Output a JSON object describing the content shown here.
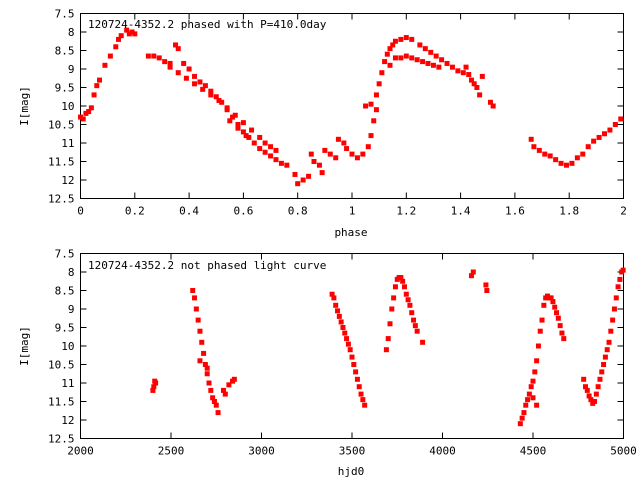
{
  "colors": {
    "series": "#ff0000",
    "frame": "#000000",
    "background": "#ffffff"
  },
  "chart_data": [
    {
      "type": "scatter",
      "title": "120724-4352.2 phased with P=410.0day",
      "xlabel": "phase",
      "ylabel": "I[mag]",
      "xlim": [
        0,
        2
      ],
      "ylim": [
        12.5,
        7.5
      ],
      "y_inverted": true,
      "grid": false,
      "xticks": [
        "0",
        "0.2",
        "0.4",
        "0.6",
        "0.8",
        "1",
        "1.2",
        "1.4",
        "1.6",
        "1.8",
        "2"
      ],
      "xtick_values": [
        0,
        0.2,
        0.4,
        0.6,
        0.8,
        1.0,
        1.2,
        1.4,
        1.6,
        1.8,
        2.0
      ],
      "yticks": [
        "7.5",
        "8",
        "8.5",
        "9",
        "9.5",
        "10",
        "10.5",
        "11",
        "11.5",
        "12",
        "12.5"
      ],
      "ytick_values": [
        7.5,
        8,
        8.5,
        9,
        9.5,
        10,
        10.5,
        11,
        11.5,
        12,
        12.5
      ],
      "series": [
        {
          "color": "#ff0000",
          "points": [
            [
              0.0,
              10.3
            ],
            [
              0.01,
              10.35
            ],
            [
              0.02,
              10.2
            ],
            [
              0.03,
              10.15
            ],
            [
              0.04,
              10.05
            ],
            [
              0.05,
              9.7
            ],
            [
              0.06,
              9.45
            ],
            [
              0.07,
              9.3
            ],
            [
              0.09,
              8.9
            ],
            [
              0.11,
              8.65
            ],
            [
              0.13,
              8.4
            ],
            [
              0.14,
              8.2
            ],
            [
              0.15,
              8.1
            ],
            [
              0.17,
              7.95
            ],
            [
              0.18,
              8.05
            ],
            [
              0.19,
              8.0
            ],
            [
              0.2,
              8.05
            ],
            [
              0.25,
              8.65
            ],
            [
              0.27,
              8.65
            ],
            [
              0.29,
              8.7
            ],
            [
              0.31,
              8.8
            ],
            [
              0.33,
              8.85
            ],
            [
              0.35,
              8.35
            ],
            [
              0.36,
              8.45
            ],
            [
              0.38,
              8.85
            ],
            [
              0.4,
              9.0
            ],
            [
              0.42,
              9.2
            ],
            [
              0.44,
              9.35
            ],
            [
              0.46,
              9.45
            ],
            [
              0.48,
              9.6
            ],
            [
              0.5,
              9.75
            ],
            [
              0.52,
              9.9
            ],
            [
              0.54,
              10.1
            ],
            [
              0.56,
              10.3
            ],
            [
              0.58,
              10.5
            ],
            [
              0.6,
              10.7
            ],
            [
              0.62,
              10.85
            ],
            [
              0.64,
              11.0
            ],
            [
              0.66,
              11.15
            ],
            [
              0.68,
              11.25
            ],
            [
              0.7,
              11.35
            ],
            [
              0.72,
              11.45
            ],
            [
              0.74,
              11.55
            ],
            [
              0.76,
              11.6
            ],
            [
              0.33,
              8.95
            ],
            [
              0.36,
              9.1
            ],
            [
              0.39,
              9.25
            ],
            [
              0.42,
              9.4
            ],
            [
              0.45,
              9.55
            ],
            [
              0.48,
              9.7
            ],
            [
              0.51,
              9.85
            ],
            [
              0.54,
              10.05
            ],
            [
              0.57,
              10.25
            ],
            [
              0.6,
              10.45
            ],
            [
              0.63,
              10.65
            ],
            [
              0.66,
              10.85
            ],
            [
              0.68,
              11.0
            ],
            [
              0.7,
              11.1
            ],
            [
              0.72,
              11.2
            ],
            [
              0.55,
              10.4
            ],
            [
              0.58,
              10.6
            ],
            [
              0.61,
              10.8
            ],
            [
              0.79,
              11.85
            ],
            [
              0.8,
              12.1
            ],
            [
              0.82,
              12.0
            ],
            [
              0.84,
              11.9
            ],
            [
              0.85,
              11.3
            ],
            [
              0.86,
              11.5
            ],
            [
              0.88,
              11.6
            ],
            [
              0.89,
              11.8
            ],
            [
              0.9,
              11.2
            ],
            [
              0.92,
              11.3
            ],
            [
              0.94,
              11.4
            ],
            [
              0.95,
              10.9
            ],
            [
              0.97,
              11.0
            ],
            [
              0.98,
              11.15
            ],
            [
              1.0,
              11.3
            ],
            [
              1.02,
              11.4
            ],
            [
              1.04,
              11.3
            ],
            [
              1.06,
              11.1
            ],
            [
              1.07,
              10.8
            ],
            [
              1.08,
              10.4
            ],
            [
              1.09,
              10.1
            ],
            [
              1.05,
              10.0
            ],
            [
              1.07,
              9.95
            ],
            [
              1.09,
              9.7
            ],
            [
              1.1,
              9.4
            ],
            [
              1.11,
              9.1
            ],
            [
              1.12,
              8.8
            ],
            [
              1.13,
              8.6
            ],
            [
              1.14,
              8.45
            ],
            [
              1.15,
              8.35
            ],
            [
              1.16,
              8.25
            ],
            [
              1.18,
              8.2
            ],
            [
              1.2,
              8.15
            ],
            [
              1.22,
              8.2
            ],
            [
              1.14,
              8.9
            ],
            [
              1.16,
              8.7
            ],
            [
              1.18,
              8.7
            ],
            [
              1.2,
              8.65
            ],
            [
              1.22,
              8.7
            ],
            [
              1.24,
              8.75
            ],
            [
              1.26,
              8.8
            ],
            [
              1.28,
              8.85
            ],
            [
              1.3,
              8.9
            ],
            [
              1.32,
              8.95
            ],
            [
              1.25,
              8.35
            ],
            [
              1.27,
              8.45
            ],
            [
              1.29,
              8.55
            ],
            [
              1.31,
              8.65
            ],
            [
              1.33,
              8.75
            ],
            [
              1.35,
              8.85
            ],
            [
              1.37,
              8.95
            ],
            [
              1.39,
              9.05
            ],
            [
              1.41,
              9.1
            ],
            [
              1.43,
              9.15
            ],
            [
              1.44,
              9.3
            ],
            [
              1.45,
              9.4
            ],
            [
              1.46,
              9.5
            ],
            [
              1.47,
              9.7
            ],
            [
              1.42,
              8.95
            ],
            [
              1.48,
              9.2
            ],
            [
              1.51,
              9.9
            ],
            [
              1.52,
              10.0
            ],
            [
              1.66,
              10.9
            ],
            [
              1.67,
              11.1
            ],
            [
              1.69,
              11.2
            ],
            [
              1.71,
              11.3
            ],
            [
              1.73,
              11.35
            ],
            [
              1.75,
              11.45
            ],
            [
              1.77,
              11.55
            ],
            [
              1.79,
              11.6
            ],
            [
              1.81,
              11.55
            ],
            [
              1.83,
              11.4
            ],
            [
              1.85,
              11.3
            ],
            [
              1.87,
              11.1
            ],
            [
              1.89,
              10.95
            ],
            [
              1.91,
              10.85
            ],
            [
              1.93,
              10.75
            ],
            [
              1.95,
              10.65
            ],
            [
              1.97,
              10.5
            ],
            [
              1.99,
              10.35
            ]
          ]
        }
      ]
    },
    {
      "type": "scatter",
      "title": "120724-4352.2 not phased light curve",
      "xlabel": "hjd0",
      "ylabel": "I[mag]",
      "xlim": [
        2000,
        5000
      ],
      "ylim": [
        12.5,
        7.5
      ],
      "y_inverted": true,
      "grid": false,
      "xticks": [
        "2000",
        "2500",
        "3000",
        "3500",
        "4000",
        "4500",
        "5000"
      ],
      "xtick_values": [
        2000,
        2500,
        3000,
        3500,
        4000,
        4500,
        5000
      ],
      "yticks": [
        "7.5",
        "8",
        "8.5",
        "9",
        "9.5",
        "10",
        "10.5",
        "11",
        "11.5",
        "12",
        "12.5"
      ],
      "ytick_values": [
        7.5,
        8,
        8.5,
        9,
        9.5,
        10,
        10.5,
        11,
        11.5,
        12,
        12.5
      ],
      "series": [
        {
          "color": "#ff0000",
          "points": [
            [
              2400,
              11.2
            ],
            [
              2405,
              11.1
            ],
            [
              2410,
              10.95
            ],
            [
              2415,
              11.0
            ],
            [
              2620,
              8.5
            ],
            [
              2630,
              8.7
            ],
            [
              2640,
              9.0
            ],
            [
              2650,
              9.3
            ],
            [
              2660,
              9.6
            ],
            [
              2670,
              9.9
            ],
            [
              2680,
              10.2
            ],
            [
              2690,
              10.5
            ],
            [
              2700,
              10.75
            ],
            [
              2710,
              11.0
            ],
            [
              2720,
              11.2
            ],
            [
              2730,
              11.4
            ],
            [
              2740,
              11.5
            ],
            [
              2750,
              11.6
            ],
            [
              2660,
              10.4
            ],
            [
              2700,
              10.6
            ],
            [
              2760,
              11.8
            ],
            [
              2790,
              11.2
            ],
            [
              2800,
              11.3
            ],
            [
              2820,
              11.05
            ],
            [
              2840,
              10.95
            ],
            [
              2850,
              10.9
            ],
            [
              3390,
              8.6
            ],
            [
              3400,
              8.7
            ],
            [
              3410,
              8.9
            ],
            [
              3420,
              9.05
            ],
            [
              3430,
              9.2
            ],
            [
              3440,
              9.35
            ],
            [
              3450,
              9.5
            ],
            [
              3460,
              9.65
            ],
            [
              3470,
              9.8
            ],
            [
              3480,
              9.95
            ],
            [
              3490,
              10.1
            ],
            [
              3500,
              10.3
            ],
            [
              3510,
              10.5
            ],
            [
              3520,
              10.7
            ],
            [
              3530,
              10.9
            ],
            [
              3540,
              11.1
            ],
            [
              3550,
              11.3
            ],
            [
              3560,
              11.45
            ],
            [
              3570,
              11.6
            ],
            [
              3690,
              10.1
            ],
            [
              3700,
              9.8
            ],
            [
              3710,
              9.4
            ],
            [
              3720,
              9.0
            ],
            [
              3730,
              8.7
            ],
            [
              3740,
              8.4
            ],
            [
              3750,
              8.2
            ],
            [
              3760,
              8.15
            ],
            [
              3770,
              8.15
            ],
            [
              3780,
              8.25
            ],
            [
              3790,
              8.4
            ],
            [
              3800,
              8.6
            ],
            [
              3810,
              8.75
            ],
            [
              3820,
              8.9
            ],
            [
              3830,
              9.1
            ],
            [
              3840,
              9.3
            ],
            [
              3850,
              9.45
            ],
            [
              3860,
              9.6
            ],
            [
              3890,
              9.9
            ],
            [
              4160,
              8.1
            ],
            [
              4170,
              8.0
            ],
            [
              4240,
              8.35
            ],
            [
              4245,
              8.5
            ],
            [
              4430,
              12.1
            ],
            [
              4440,
              11.95
            ],
            [
              4450,
              11.8
            ],
            [
              4460,
              11.6
            ],
            [
              4470,
              11.45
            ],
            [
              4480,
              11.3
            ],
            [
              4490,
              11.1
            ],
            [
              4500,
              10.95
            ],
            [
              4510,
              10.7
            ],
            [
              4520,
              10.4
            ],
            [
              4530,
              10.0
            ],
            [
              4540,
              9.6
            ],
            [
              4550,
              9.3
            ],
            [
              4560,
              8.9
            ],
            [
              4570,
              8.7
            ],
            [
              4580,
              8.65
            ],
            [
              4590,
              8.7
            ],
            [
              4600,
              8.7
            ],
            [
              4610,
              8.8
            ],
            [
              4620,
              8.95
            ],
            [
              4630,
              9.1
            ],
            [
              4640,
              9.25
            ],
            [
              4650,
              9.45
            ],
            [
              4660,
              9.65
            ],
            [
              4670,
              9.8
            ],
            [
              4500,
              11.4
            ],
            [
              4520,
              11.6
            ],
            [
              4780,
              10.9
            ],
            [
              4790,
              11.1
            ],
            [
              4800,
              11.2
            ],
            [
              4810,
              11.35
            ],
            [
              4820,
              11.45
            ],
            [
              4830,
              11.55
            ],
            [
              4840,
              11.5
            ],
            [
              4850,
              11.3
            ],
            [
              4860,
              11.1
            ],
            [
              4870,
              10.9
            ],
            [
              4880,
              10.7
            ],
            [
              4890,
              10.5
            ],
            [
              4900,
              10.3
            ],
            [
              4910,
              10.1
            ],
            [
              4920,
              9.9
            ],
            [
              4930,
              9.6
            ],
            [
              4940,
              9.3
            ],
            [
              4950,
              9.0
            ],
            [
              4960,
              8.7
            ],
            [
              4970,
              8.4
            ],
            [
              4980,
              8.2
            ],
            [
              4990,
              8.0
            ],
            [
              4998,
              7.95
            ]
          ]
        }
      ]
    }
  ]
}
